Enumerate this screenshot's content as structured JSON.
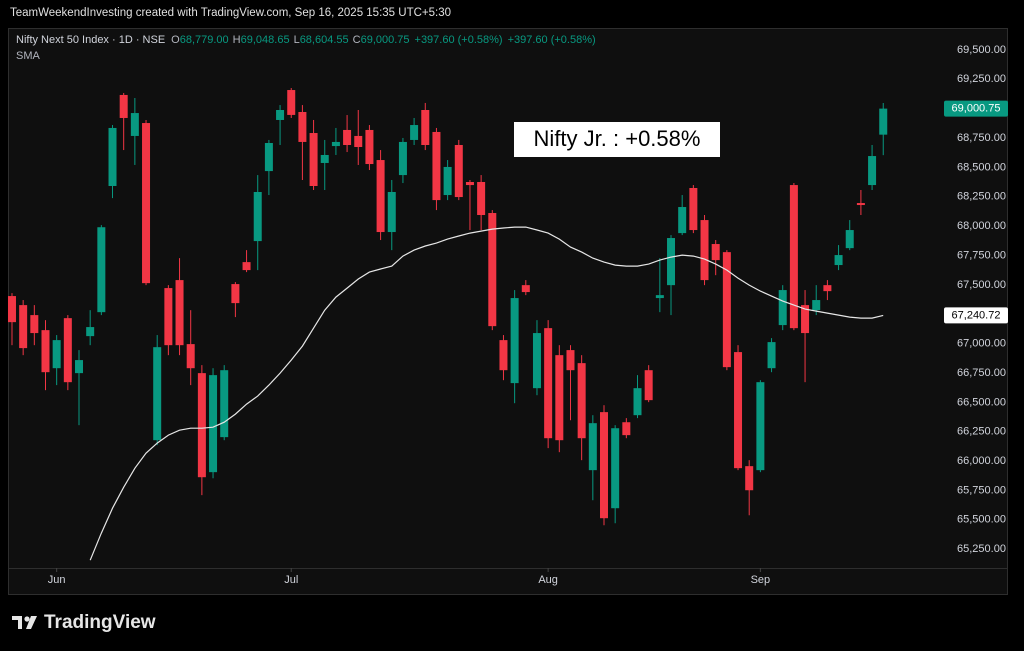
{
  "chart_data": {
    "type": "candlestick",
    "header": "TeamWeekendInvesting created with TradingView.com, Sep 16, 2025 15:35 UTC+5:30",
    "symbol": "Nifty Next 50 Index · 1D · NSE",
    "ohlc_legend": [
      {
        "key": "O",
        "value": "68,779.00"
      },
      {
        "key": "H",
        "value": "69,048.65"
      },
      {
        "key": "L",
        "value": "68,604.55"
      },
      {
        "key": "C",
        "value": "69,000.75"
      }
    ],
    "change_labels": [
      "+397.60 (+0.58%)",
      "+397.60 (+0.58%)"
    ],
    "annotation": "Nifty Jr. : +0.58%",
    "brand": "TradingView",
    "up_color": "#089981",
    "down_color": "#f23645",
    "grid": false,
    "categories": [
      null,
      null,
      null,
      null,
      "Jun",
      null,
      null,
      null,
      null,
      null,
      null,
      null,
      null,
      null,
      null,
      null,
      null,
      null,
      null,
      null,
      null,
      null,
      null,
      null,
      null,
      "Jul",
      null,
      null,
      null,
      null,
      null,
      null,
      null,
      null,
      null,
      null,
      null,
      null,
      null,
      null,
      null,
      null,
      null,
      null,
      null,
      null,
      null,
      null,
      "Aug",
      null,
      null,
      null,
      null,
      null,
      null,
      null,
      null,
      null,
      null,
      null,
      null,
      null,
      null,
      null,
      null,
      null,
      null,
      "Sep",
      null,
      null,
      null,
      null,
      null,
      null,
      null,
      null,
      null,
      null,
      null
    ],
    "open": [
      67405,
      67328,
      67243,
      67115,
      66791,
      67217,
      66749,
      67064,
      67268,
      68342,
      69117,
      68768,
      68878,
      66178,
      67473,
      67541,
      66996,
      66749,
      65906,
      66204,
      67507,
      67694,
      67873,
      68469,
      68904,
      69159,
      68972,
      68793,
      68538,
      68682,
      68819,
      68768,
      68819,
      68563,
      67950,
      68435,
      68734,
      68989,
      68802,
      68265,
      68691,
      68376,
      68376,
      68112,
      67030,
      66664,
      67498,
      66621,
      67132,
      66902,
      66945,
      66834,
      65923,
      66417,
      65599,
      66331,
      66391,
      66774,
      67388,
      67498,
      67941,
      68325,
      68052,
      67848,
      67779,
      66928,
      65957,
      65923,
      66791,
      67158,
      68350,
      67328,
      67285,
      67498,
      67669,
      67813,
      68197,
      68350,
      68779
    ],
    "high": [
      67430,
      67371,
      67328,
      67200,
      67073,
      67243,
      66945,
      67285,
      68009,
      68861,
      69134,
      69091,
      68904,
      67073,
      67498,
      67728,
      67285,
      66817,
      66791,
      66817,
      67524,
      67796,
      68435,
      68734,
      69031,
      69176,
      69031,
      68904,
      68734,
      68836,
      68946,
      68989,
      68861,
      68648,
      68393,
      68751,
      68921,
      69049,
      68836,
      68563,
      68734,
      68393,
      68435,
      68137,
      67073,
      67456,
      67541,
      67200,
      67200,
      66987,
      66987,
      66902,
      66391,
      66476,
      66306,
      66366,
      66732,
      66817,
      67728,
      67924,
      68265,
      68350,
      68095,
      67882,
      67796,
      66987,
      66008,
      66689,
      67047,
      67498,
      68367,
      67456,
      67498,
      67541,
      67839,
      68052,
      68308,
      68691,
      69048.65
    ],
    "low": [
      66987,
      66902,
      66987,
      66604,
      66647,
      66604,
      66306,
      66987,
      67243,
      68239,
      68648,
      68521,
      67498,
      66136,
      66902,
      66902,
      66647,
      65710,
      65854,
      66178,
      67226,
      67609,
      67626,
      68265,
      68691,
      68921,
      68393,
      68308,
      68308,
      68606,
      68631,
      68521,
      68478,
      67882,
      67796,
      68367,
      68691,
      68648,
      68137,
      68222,
      68222,
      67967,
      67967,
      67115,
      66689,
      66493,
      67413,
      66561,
      66110,
      66076,
      66348,
      66008,
      65667,
      65454,
      65471,
      66195,
      66366,
      66502,
      67268,
      67243,
      67924,
      67941,
      67498,
      67583,
      66774,
      65923,
      65539,
      65906,
      66757,
      67115,
      67115,
      66672,
      67243,
      67371,
      67626,
      67796,
      68095,
      68308,
      68604.55
    ],
    "close": [
      67183,
      66962,
      67090,
      66757,
      67030,
      66672,
      66860,
      67141,
      67991,
      68836,
      68921,
      68963,
      67515,
      66970,
      66987,
      66987,
      66791,
      65863,
      66732,
      66774,
      67345,
      67626,
      68291,
      68708,
      68989,
      68947,
      68717,
      68342,
      68606,
      68717,
      68691,
      68674,
      68529,
      67950,
      68291,
      68717,
      68861,
      68691,
      68222,
      68504,
      68248,
      68350,
      68095,
      67149,
      66774,
      67388,
      67439,
      67090,
      66195,
      66178,
      66774,
      66195,
      66323,
      65514,
      66280,
      66221,
      66621,
      66519,
      67413,
      67899,
      68163,
      67967,
      67541,
      67711,
      66800,
      65940,
      65752,
      66672,
      67013,
      67456,
      67132,
      67090,
      67371,
      67447,
      67754,
      67967,
      68180,
      68597,
      69000.75
    ],
    "last_close_label": "69,000.75",
    "overlays": [
      {
        "name": "SMA",
        "color": "#e6e6e6",
        "values": [
          null,
          null,
          null,
          null,
          null,
          null,
          null,
          65156,
          65386,
          65599,
          65778,
          65940,
          66067,
          66153,
          66221,
          66263,
          66280,
          66280,
          66289,
          66331,
          66400,
          66485,
          66553,
          66647,
          66749,
          66860,
          66979,
          67132,
          67285,
          67396,
          67473,
          67550,
          67609,
          67635,
          67660,
          67745,
          67796,
          67831,
          67856,
          67890,
          67916,
          67941,
          67958,
          67975,
          67984,
          67992,
          67992,
          67967,
          67941,
          67890,
          67822,
          67779,
          67728,
          67694,
          67669,
          67660,
          67660,
          67677,
          67711,
          67737,
          67754,
          67745,
          67720,
          67677,
          67626,
          67558,
          67498,
          67447,
          67405,
          67362,
          67328,
          67294,
          67277,
          67260,
          67243,
          67226,
          67217,
          67217,
          67240.72
        ],
        "last_label": "67,240.72"
      }
    ],
    "ylim": [
      65090,
      69670
    ],
    "yticks": [
      {
        "value": 65250,
        "label": "65,250.00"
      },
      {
        "value": 65500,
        "label": "65,500.00"
      },
      {
        "value": 65750,
        "label": "65,750.00"
      },
      {
        "value": 66000,
        "label": "66,000.00"
      },
      {
        "value": 66250,
        "label": "66,250.00"
      },
      {
        "value": 66500,
        "label": "66,500.00"
      },
      {
        "value": 66750,
        "label": "66,750.00"
      },
      {
        "value": 67000,
        "label": "67,000.00"
      },
      {
        "value": 67250,
        "label": "67,250.00"
      },
      {
        "value": 67500,
        "label": "67,500.00"
      },
      {
        "value": 67750,
        "label": "67,750.00"
      },
      {
        "value": 68000,
        "label": "68,000.00"
      },
      {
        "value": 68250,
        "label": "68,250.00"
      },
      {
        "value": 68500,
        "label": "68,500.00"
      },
      {
        "value": 68750,
        "label": "68,750.00"
      },
      {
        "value": 69000,
        "label": "69,000.00"
      },
      {
        "value": 69250,
        "label": "69,250.00"
      },
      {
        "value": 69500,
        "label": "69,500.00"
      }
    ]
  }
}
